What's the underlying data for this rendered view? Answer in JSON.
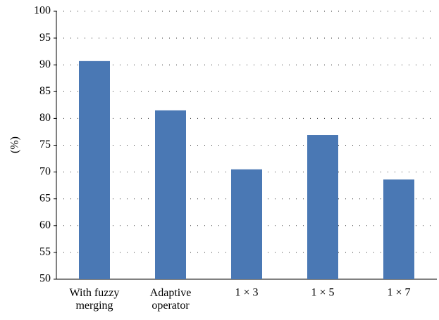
{
  "chart_data": {
    "type": "bar",
    "y_label": "(%)",
    "categories": [
      "With fuzzy\nmerging",
      "Adaptive\noperator",
      "1 × 3",
      "1 × 5",
      "1 × 7"
    ],
    "values": [
      90.7,
      81.5,
      70.5,
      76.9,
      68.6
    ],
    "color": "#4a78b4",
    "ylim": [
      50,
      100
    ],
    "yticks": [
      50,
      55,
      60,
      65,
      70,
      75,
      80,
      85,
      90,
      95,
      100
    ],
    "grid": true
  }
}
